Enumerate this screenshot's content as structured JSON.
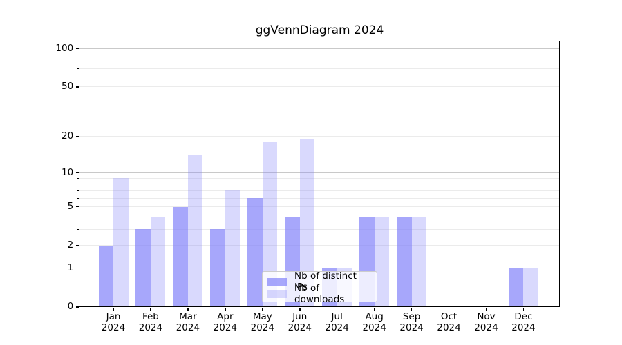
{
  "title": "ggVennDiagram 2024",
  "chart_data": {
    "type": "bar",
    "title": "ggVennDiagram 2024",
    "xlabel": "",
    "ylabel": "",
    "categories": [
      "Jan",
      "Feb",
      "Mar",
      "Apr",
      "May",
      "Jun",
      "Jul",
      "Aug",
      "Sep",
      "Oct",
      "Nov",
      "Dec"
    ],
    "category_year": "2024",
    "series": [
      {
        "name": "Nb of distinct IPs",
        "color": "rgba(130,130,250,0.70)",
        "values": [
          2,
          3,
          5,
          3,
          6,
          4,
          1,
          4,
          4,
          0,
          0,
          1
        ]
      },
      {
        "name": "Nb of downloads",
        "color": "rgba(130,130,250,0.30)",
        "values": [
          9,
          4,
          14,
          7,
          18,
          19,
          1,
          4,
          4,
          0,
          0,
          1
        ]
      }
    ],
    "yscale": "log10(1+x)",
    "ylim": [
      0,
      116
    ],
    "ytick_values": [
      0,
      1,
      2,
      5,
      10,
      20,
      50,
      100
    ],
    "ytick_labels": [
      "0",
      "1",
      "2",
      "5",
      "10",
      "20",
      "50",
      "100"
    ],
    "grid": {
      "major_values": [
        1,
        10,
        100
      ],
      "minor_values": [
        2,
        3,
        4,
        5,
        6,
        7,
        8,
        9,
        20,
        30,
        40,
        50,
        60,
        70,
        80,
        90
      ],
      "major_color": "#c9c9c9",
      "minor_color": "#ebebeb"
    },
    "legend": {
      "position": "lower-center",
      "items": [
        {
          "label": "Nb of distinct IPs",
          "color": "rgba(130,130,250,0.70)"
        },
        {
          "label": "Nb of downloads",
          "color": "rgba(130,130,250,0.30)"
        }
      ]
    }
  }
}
